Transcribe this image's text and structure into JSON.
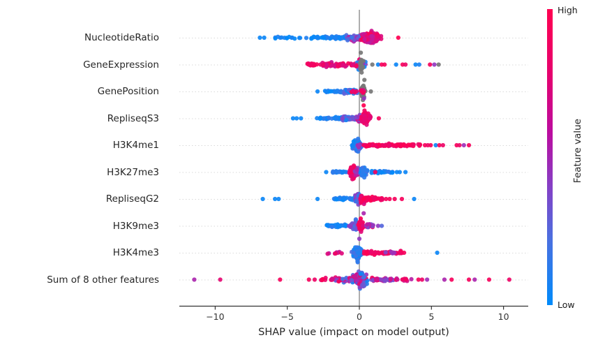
{
  "chart_data": {
    "type": "scatter",
    "subtype": "shap-beeswarm-summary",
    "title": "",
    "xlabel": "SHAP value (impact on model output)",
    "xlim": [
      -12.45,
      11.75
    ],
    "x_ticks": [
      {
        "value": -10,
        "label": "−10"
      },
      {
        "value": -5,
        "label": "−5"
      },
      {
        "value": 0,
        "label": "0"
      },
      {
        "value": 5,
        "label": "5"
      },
      {
        "value": 10,
        "label": "10"
      }
    ],
    "grid": "dotted-row-guides",
    "zero_line": true,
    "colorbar": {
      "high_label": "High",
      "low_label": "Low",
      "title": "Feature value",
      "position": "right"
    },
    "palette": {
      "low": "#008bfb",
      "high": "#ff0051",
      "nan": "#777777",
      "zero_line": "#999999",
      "axis": "#333333",
      "row_guide": "#d9d9d9",
      "scale_stops": [
        [
          0.0,
          "#008bfb"
        ],
        [
          0.22,
          "#3b78e7"
        ],
        [
          0.42,
          "#7f4bcc"
        ],
        [
          0.58,
          "#a62ab4"
        ],
        [
          0.75,
          "#d40f89"
        ],
        [
          1.0,
          "#ff0051"
        ]
      ]
    },
    "features": [
      {
        "label": "NucleotideRatio",
        "groups": [
          {
            "x0": -6.1,
            "x1": -2.6,
            "n": 26,
            "v0": 0.0,
            "v1": 0.15,
            "h": 2.5,
            "dist": "uniform"
          },
          {
            "x0": -2.6,
            "x1": -0.6,
            "n": 45,
            "v0": 0.0,
            "v1": 0.25,
            "h": 3.5,
            "dist": "uniform"
          },
          {
            "x0": -0.9,
            "x1": 0.1,
            "n": 50,
            "v0": 0.2,
            "v1": 0.7,
            "h": 7,
            "dist": "uniform"
          },
          {
            "x0": -0.2,
            "x1": 1.9,
            "n": 170,
            "v0": 0.65,
            "v1": 1.0,
            "h": 14,
            "dist": "gauss",
            "peak": 0.75
          }
        ],
        "points": [
          {
            "x": -6.9,
            "v": 0.05
          },
          {
            "x": -6.6,
            "v": 0.05
          },
          {
            "x": 2.7,
            "v": 1.0
          }
        ]
      },
      {
        "label": "GeneExpression",
        "groups": [
          {
            "x0": -3.6,
            "x1": -2.6,
            "n": 18,
            "v0": 0.85,
            "v1": 1.0,
            "h": 3,
            "dist": "uniform"
          },
          {
            "x0": -2.6,
            "x1": -0.2,
            "n": 55,
            "v0": 0.7,
            "v1": 1.0,
            "h": 4,
            "dist": "uniform"
          },
          {
            "x0": -0.35,
            "x1": 0.55,
            "n": 70,
            "v0": 0.0,
            "v1": 1.0,
            "h": 13,
            "dist": "gauss",
            "peak": 0.1
          },
          {
            "x0": -0.05,
            "x1": 0.45,
            "n": 14,
            "nan": true,
            "h": 17,
            "dist": "gauss",
            "peak": 0.15
          }
        ],
        "points": [
          {
            "x": 0.9,
            "v": "nan"
          },
          {
            "x": 1.3,
            "v": 0.05
          },
          {
            "x": 1.55,
            "v": 0.95
          },
          {
            "x": 1.75,
            "v": 0.95
          },
          {
            "x": 2.55,
            "v": 0.05
          },
          {
            "x": 3.0,
            "v": 0.95
          },
          {
            "x": 3.2,
            "v": 0.9
          },
          {
            "x": 3.9,
            "v": 0.05
          },
          {
            "x": 4.15,
            "v": 0.1
          },
          {
            "x": 4.9,
            "v": 0.95
          },
          {
            "x": 5.2,
            "v": 0.5
          },
          {
            "x": 5.5,
            "v": "nan"
          },
          {
            "x": 0.35,
            "v": "nan",
            "dy": 22
          },
          {
            "x": 0.1,
            "v": "nan",
            "dy": -17
          }
        ]
      },
      {
        "label": "GenePosition",
        "groups": [
          {
            "x0": -2.4,
            "x1": -1.1,
            "n": 22,
            "v0": 0.0,
            "v1": 0.2,
            "h": 2.5,
            "dist": "uniform"
          },
          {
            "x0": -1.1,
            "x1": -0.15,
            "n": 45,
            "v0": 0.0,
            "v1": 0.35,
            "h": 4,
            "dist": "uniform"
          },
          {
            "x0": -0.55,
            "x1": -0.15,
            "n": 6,
            "v0": 0.8,
            "v1": 1.0,
            "h": 3,
            "dist": "uniform"
          },
          {
            "x0": 0.0,
            "x1": 0.55,
            "n": 40,
            "nan": true,
            "h": 16,
            "dist": "gauss",
            "peak": 0.25
          },
          {
            "x0": 0.05,
            "x1": 0.45,
            "n": 8,
            "v0": 0.75,
            "v1": 1.0,
            "h": 8,
            "dist": "gauss",
            "peak": 0.25
          }
        ],
        "points": [
          {
            "x": -2.9,
            "v": 0.05
          },
          {
            "x": 0.8,
            "v": "nan"
          },
          {
            "x": 0.3,
            "v": 1.0,
            "dy": 20
          },
          {
            "x": 0.32,
            "v": 0.5,
            "dy": 10
          }
        ]
      },
      {
        "label": "RepliseqS3",
        "groups": [
          {
            "x0": -3.0,
            "x1": -1.2,
            "n": 28,
            "v0": 0.0,
            "v1": 0.2,
            "h": 2.5,
            "dist": "uniform"
          },
          {
            "x0": -1.2,
            "x1": -0.25,
            "n": 50,
            "v0": 0.05,
            "v1": 0.5,
            "h": 5,
            "dist": "uniform"
          },
          {
            "x0": -0.35,
            "x1": 0.15,
            "n": 45,
            "v0": 0.35,
            "v1": 0.8,
            "h": 9,
            "dist": "gauss",
            "peak": 0.0
          },
          {
            "x0": 0.0,
            "x1": 0.95,
            "n": 110,
            "v0": 0.8,
            "v1": 1.0,
            "h": 14,
            "dist": "gauss",
            "peak": 0.35
          }
        ],
        "points": [
          {
            "x": -4.6,
            "v": 0.05
          },
          {
            "x": -4.35,
            "v": 0.05
          },
          {
            "x": -4.05,
            "v": 0.05
          },
          {
            "x": 1.35,
            "v": 0.95
          }
        ]
      },
      {
        "label": "H3K4me1",
        "groups": [
          {
            "x0": -0.75,
            "x1": 0.3,
            "n": 110,
            "v0": 0.0,
            "v1": 0.35,
            "h": 12,
            "dist": "gauss",
            "peak": -0.1
          },
          {
            "x0": -0.3,
            "x1": 0.2,
            "n": 12,
            "v0": 0.4,
            "v1": 0.7,
            "h": 6,
            "dist": "gauss",
            "peak": 0.0
          },
          {
            "x0": 0.25,
            "x1": 4.3,
            "n": 85,
            "v0": 0.85,
            "v1": 1.0,
            "h": 3.5,
            "dist": "uniform"
          }
        ],
        "points": [
          {
            "x": 4.55,
            "v": 0.95
          },
          {
            "x": 4.75,
            "v": 0.9
          },
          {
            "x": 4.95,
            "v": 0.95
          },
          {
            "x": 5.3,
            "v": 0.05
          },
          {
            "x": 5.55,
            "v": 0.95
          },
          {
            "x": 5.8,
            "v": 0.9
          },
          {
            "x": 6.75,
            "v": 0.95
          },
          {
            "x": 6.95,
            "v": 0.9
          },
          {
            "x": 7.25,
            "v": 0.55
          },
          {
            "x": 7.6,
            "v": 0.95
          }
        ]
      },
      {
        "label": "H3K27me3",
        "groups": [
          {
            "x0": -1.9,
            "x1": -0.9,
            "n": 20,
            "v0": 0.0,
            "v1": 0.2,
            "h": 2.5,
            "dist": "uniform"
          },
          {
            "x0": -0.95,
            "x1": -0.05,
            "n": 85,
            "v0": 0.75,
            "v1": 1.0,
            "h": 15,
            "dist": "gauss",
            "peak": -0.4
          },
          {
            "x0": -0.5,
            "x1": 0.1,
            "n": 20,
            "v0": 0.4,
            "v1": 0.7,
            "h": 10,
            "dist": "gauss",
            "peak": -0.1
          },
          {
            "x0": -0.05,
            "x1": 0.75,
            "n": 60,
            "v0": 0.0,
            "v1": 0.3,
            "h": 12,
            "dist": "gauss",
            "peak": 0.25
          },
          {
            "x0": 0.8,
            "x1": 2.3,
            "n": 32,
            "v0": 0.0,
            "v1": 0.2,
            "h": 3,
            "dist": "uniform"
          }
        ],
        "points": [
          {
            "x": -2.3,
            "v": 0.05
          },
          {
            "x": 1.1,
            "v": 0.95
          },
          {
            "x": 2.6,
            "v": 0.05
          },
          {
            "x": 2.8,
            "v": 0.05
          },
          {
            "x": 3.2,
            "v": 0.05
          }
        ]
      },
      {
        "label": "RepliseqG2",
        "groups": [
          {
            "x0": -1.8,
            "x1": -0.5,
            "n": 30,
            "v0": 0.0,
            "v1": 0.25,
            "h": 3,
            "dist": "uniform"
          },
          {
            "x0": -0.6,
            "x1": 0.1,
            "n": 65,
            "v0": 0.1,
            "v1": 0.6,
            "h": 15,
            "dist": "gauss",
            "peak": -0.1
          },
          {
            "x0": 0.0,
            "x1": 0.55,
            "n": 45,
            "v0": 0.8,
            "v1": 1.0,
            "h": 12,
            "dist": "gauss",
            "peak": 0.15
          },
          {
            "x0": 0.3,
            "x1": 1.6,
            "n": 55,
            "v0": 0.85,
            "v1": 1.0,
            "h": 4,
            "dist": "uniform"
          }
        ],
        "points": [
          {
            "x": -6.7,
            "v": 0.05
          },
          {
            "x": -5.85,
            "v": 0.05
          },
          {
            "x": -5.6,
            "v": 0.05
          },
          {
            "x": -2.9,
            "v": 0.05
          },
          {
            "x": 1.85,
            "v": 0.95
          },
          {
            "x": 2.1,
            "v": 0.95
          },
          {
            "x": 2.45,
            "v": 0.95
          },
          {
            "x": 2.95,
            "v": 0.95
          },
          {
            "x": 3.8,
            "v": 0.05
          }
        ]
      },
      {
        "label": "H3K9me3",
        "groups": [
          {
            "x0": -2.3,
            "x1": -0.9,
            "n": 35,
            "v0": 0.0,
            "v1": 0.2,
            "h": 3,
            "dist": "uniform"
          },
          {
            "x0": -0.95,
            "x1": -0.05,
            "n": 70,
            "v0": 0.1,
            "v1": 0.55,
            "h": 11,
            "dist": "gauss",
            "peak": -0.25
          },
          {
            "x0": -0.2,
            "x1": 0.45,
            "n": 40,
            "v0": 0.8,
            "v1": 1.0,
            "h": 15,
            "dist": "gauss",
            "peak": 0.1
          },
          {
            "x0": 0.4,
            "x1": 1.0,
            "n": 18,
            "v0": 0.3,
            "v1": 0.9,
            "h": 5,
            "dist": "uniform"
          }
        ],
        "points": [
          {
            "x": 1.3,
            "v": 0.5
          },
          {
            "x": 1.55,
            "v": 0.3
          },
          {
            "x": 0.3,
            "v": 0.6,
            "dy": -18
          }
        ]
      },
      {
        "label": "H3K4me3",
        "groups": [
          {
            "x0": -2.4,
            "x1": -1.2,
            "n": 9,
            "v0": 0.6,
            "v1": 1.0,
            "h": 3,
            "dist": "uniform"
          },
          {
            "x0": -0.65,
            "x1": 0.3,
            "n": 130,
            "v0": 0.0,
            "v1": 0.3,
            "h": 16,
            "dist": "gauss",
            "peak": -0.1
          },
          {
            "x0": 0.3,
            "x1": 2.95,
            "n": 65,
            "v0": 0.85,
            "v1": 1.0,
            "h": 3.5,
            "dist": "uniform"
          },
          {
            "x0": 1.8,
            "x1": 2.5,
            "n": 6,
            "v0": 0.3,
            "v1": 0.6,
            "h": 3,
            "dist": "uniform"
          }
        ],
        "points": [
          {
            "x": 3.1,
            "v": 0.95
          },
          {
            "x": 5.4,
            "v": 0.05
          },
          {
            "x": 0.0,
            "v": 0.5,
            "dy": -20
          }
        ]
      },
      {
        "label": "Sum of 8 other features",
        "groups": [
          {
            "x0": -2.8,
            "x1": -1.9,
            "n": 7,
            "v0": 0.85,
            "v1": 1.0,
            "h": 3,
            "dist": "uniform"
          },
          {
            "x0": -1.9,
            "x1": -0.7,
            "n": 30,
            "v0": 0.2,
            "v1": 1.0,
            "h": 6,
            "dist": "uniform"
          },
          {
            "x0": -0.8,
            "x1": 0.8,
            "n": 150,
            "v0": 0.0,
            "v1": 1.0,
            "h": 17,
            "dist": "gauss",
            "peak": 0.0
          },
          {
            "x0": 0.8,
            "x1": 2.4,
            "n": 45,
            "v0": 0.3,
            "v1": 1.0,
            "h": 4,
            "dist": "uniform"
          },
          {
            "x0": 2.4,
            "x1": 3.8,
            "n": 14,
            "v0": 0.6,
            "v1": 1.0,
            "h": 3,
            "dist": "uniform"
          }
        ],
        "points": [
          {
            "x": -11.45,
            "v": 0.6
          },
          {
            "x": -9.65,
            "v": 0.85
          },
          {
            "x": -5.5,
            "v": 0.95
          },
          {
            "x": -3.5,
            "v": 0.95
          },
          {
            "x": -3.1,
            "v": 0.9
          },
          {
            "x": 4.1,
            "v": 0.95
          },
          {
            "x": 4.35,
            "v": 0.9
          },
          {
            "x": 4.7,
            "v": 0.55
          },
          {
            "x": 5.9,
            "v": 0.6
          },
          {
            "x": 6.4,
            "v": 0.95
          },
          {
            "x": 7.6,
            "v": 0.95
          },
          {
            "x": 8.0,
            "v": 0.6
          },
          {
            "x": 9.0,
            "v": 0.95
          },
          {
            "x": 10.4,
            "v": 0.9
          }
        ]
      }
    ]
  }
}
